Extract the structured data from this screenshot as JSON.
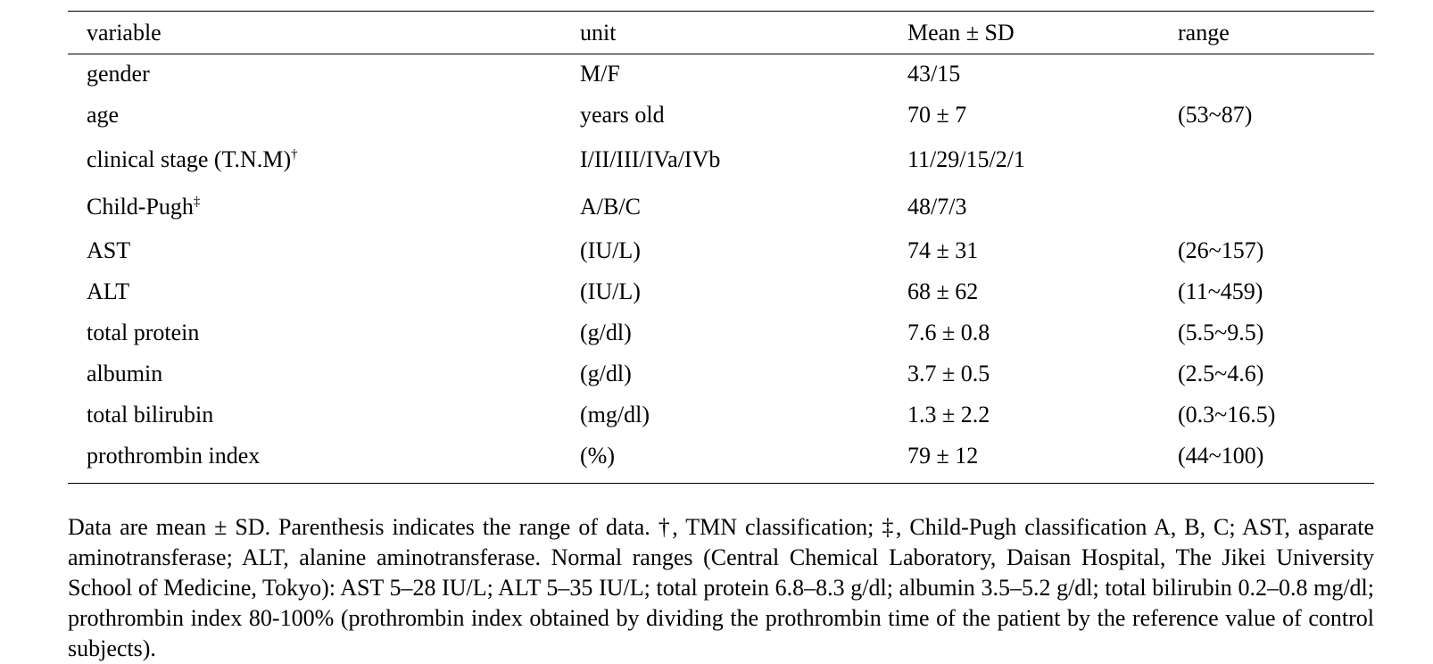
{
  "table": {
    "headers": [
      "variable",
      "unit",
      "Mean ± SD",
      "range"
    ],
    "rows": [
      {
        "variable": "gender",
        "mark": "",
        "unit": "M/F",
        "mean_sd": "43/15",
        "range": ""
      },
      {
        "variable": "age",
        "mark": "",
        "unit": "years old",
        "mean_sd": "70 ± 7",
        "range": "(53~87)"
      },
      {
        "variable": "clinical stage (T.N.M)",
        "mark": "†",
        "unit": "I/II/III/IVa/IVb",
        "mean_sd": "11/29/15/2/1",
        "range": ""
      },
      {
        "variable": "Child-Pugh",
        "mark": "‡",
        "unit": "A/B/C",
        "mean_sd": "48/7/3",
        "range": ""
      },
      {
        "variable": "AST",
        "mark": "",
        "unit": "(IU/L)",
        "mean_sd": "74 ± 31",
        "range": "(26~157)"
      },
      {
        "variable": "ALT",
        "mark": "",
        "unit": "(IU/L)",
        "mean_sd": "68 ± 62",
        "range": "(11~459)"
      },
      {
        "variable": "total protein",
        "mark": "",
        "unit": "(g/dl)",
        "mean_sd": "7.6 ± 0.8",
        "range": "(5.5~9.5)"
      },
      {
        "variable": "albumin",
        "mark": "",
        "unit": "(g/dl)",
        "mean_sd": "3.7 ± 0.5",
        "range": "(2.5~4.6)"
      },
      {
        "variable": "total bilirubin",
        "mark": "",
        "unit": "(mg/dl)",
        "mean_sd": "1.3 ± 2.2",
        "range": "(0.3~16.5)"
      },
      {
        "variable": "prothrombin index",
        "mark": "",
        "unit": "(%)",
        "mean_sd": "79 ± 12",
        "range": "(44~100)"
      }
    ]
  },
  "footnote": "Data are mean ± SD. Parenthesis indicates the range of data. †, TMN classification; ‡, Child-Pugh classification A, B, C; AST, asparate aminotransferase; ALT, alanine aminotransferase. Normal ranges (Central Chemical Laboratory, Daisan Hospital, The Jikei University School of Medicine, Tokyo): AST 5–28 IU/L; ALT 5–35 IU/L; total protein 6.8–8.3 g/dl; albumin 3.5–5.2 g/dl; total bilirubin 0.2–0.8 mg/dl; prothrombin index 80-100% (prothrombin index obtained by dividing the prothrombin time of the patient by the reference value of control subjects)."
}
